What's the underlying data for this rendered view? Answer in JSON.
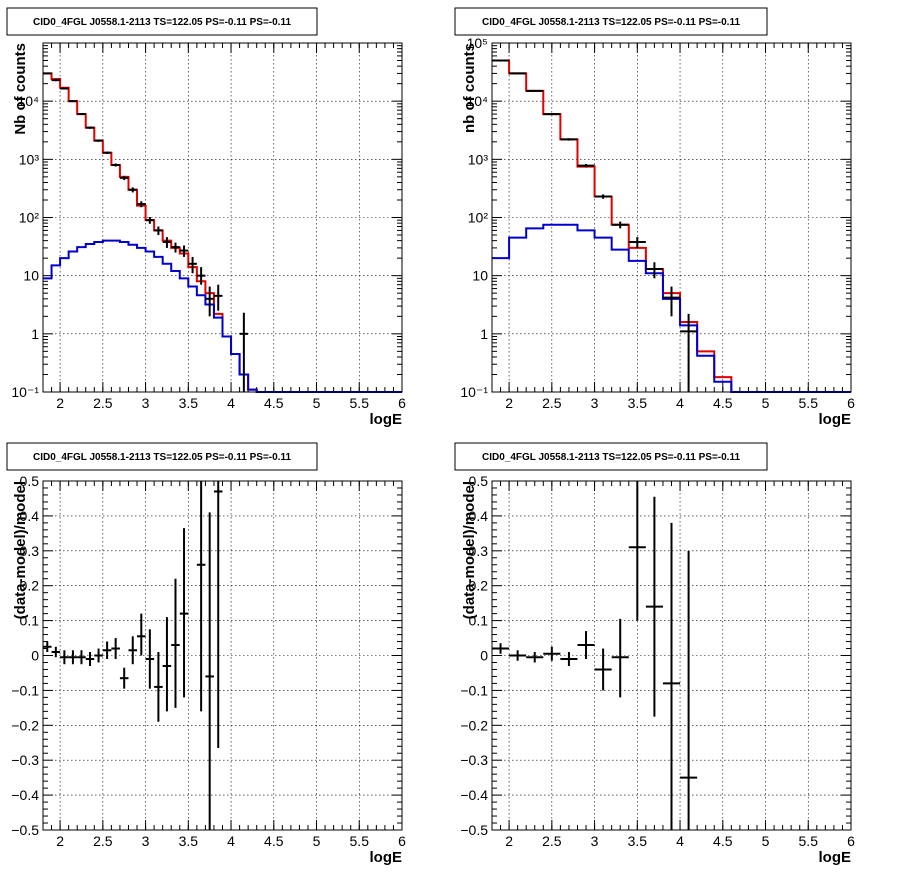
{
  "chart_data": [
    {
      "type": "line",
      "title": "CID0_4FGL J0558.1-2113 TS=122.05 PS=-0.11 PS=-0.11",
      "xlabel": "logE",
      "ylabel": "Nb of counts",
      "xlim": [
        1.8,
        6.0
      ],
      "ylim": [
        0.1,
        100000
      ],
      "yscale": "log",
      "grid": true,
      "xticks": [
        "2",
        "2.5",
        "3",
        "3.5",
        "4",
        "4.5",
        "5",
        "5.5",
        "6"
      ],
      "yticks": [
        "10⁻¹",
        "1",
        "10",
        "10²",
        "10³",
        "10⁴"
      ],
      "bin_edges": [
        1.8,
        1.9,
        2.0,
        2.1,
        2.2,
        2.3,
        2.4,
        2.5,
        2.6,
        2.7,
        2.8,
        2.9,
        3.0,
        3.1,
        3.2,
        3.3,
        3.4,
        3.5,
        3.6,
        3.7,
        3.8,
        3.9,
        4.0,
        4.1,
        4.2,
        4.3,
        4.4,
        4.5,
        4.6,
        4.7,
        4.8,
        4.9,
        5.0,
        5.1,
        5.2,
        5.3,
        5.4,
        5.5,
        5.6,
        5.7,
        5.8,
        5.9,
        6.0
      ],
      "series": [
        {
          "color": "#e00000",
          "values": [
            30000,
            24000,
            17000,
            10000,
            6000,
            3500,
            2100,
            1300,
            800,
            500,
            300,
            160,
            90,
            60,
            40,
            30,
            24,
            14,
            8,
            5,
            2.2,
            0.9,
            0.45,
            0.2,
            0.11,
            0.1,
            0.1,
            0.1,
            0.1,
            0.1,
            0.1,
            0.1,
            0.1,
            0.1,
            0.1,
            0.1,
            0.1,
            0.1,
            0.1,
            0.1,
            0.1,
            0.1
          ]
        },
        {
          "color": "#0000cc",
          "values": [
            9,
            15,
            20,
            26,
            31,
            35,
            38,
            40,
            40,
            38,
            34,
            30,
            26,
            21,
            16,
            12,
            9,
            6.5,
            4.6,
            3.2,
            1.9,
            0.9,
            0.45,
            0.2,
            0.11,
            0.1,
            0.1,
            0.1,
            0.1,
            0.1,
            0.1,
            0.1,
            0.1,
            0.1,
            0.1,
            0.1,
            0.1,
            0.1,
            0.1,
            0.1,
            0.1,
            0.1
          ]
        }
      ],
      "points": [
        {
          "x": 1.85,
          "y": 30000,
          "el": 29000,
          "eh": 31000
        },
        {
          "x": 1.95,
          "y": 23000,
          "el": 22000,
          "eh": 24000
        },
        {
          "x": 2.05,
          "y": 16500,
          "el": 16000,
          "eh": 17000
        },
        {
          "x": 2.15,
          "y": 10000,
          "el": 9700,
          "eh": 10300
        },
        {
          "x": 2.25,
          "y": 6000,
          "el": 5800,
          "eh": 6200
        },
        {
          "x": 2.35,
          "y": 3500,
          "el": 3350,
          "eh": 3650
        },
        {
          "x": 2.45,
          "y": 2100,
          "el": 2000,
          "eh": 2200
        },
        {
          "x": 2.55,
          "y": 1300,
          "el": 1240,
          "eh": 1360
        },
        {
          "x": 2.65,
          "y": 800,
          "el": 750,
          "eh": 850
        },
        {
          "x": 2.75,
          "y": 480,
          "el": 440,
          "eh": 520
        },
        {
          "x": 2.85,
          "y": 300,
          "el": 270,
          "eh": 330
        },
        {
          "x": 2.95,
          "y": 170,
          "el": 150,
          "eh": 190
        },
        {
          "x": 3.05,
          "y": 90,
          "el": 78,
          "eh": 102
        },
        {
          "x": 3.15,
          "y": 60,
          "el": 50,
          "eh": 70
        },
        {
          "x": 3.25,
          "y": 38,
          "el": 30,
          "eh": 46
        },
        {
          "x": 3.35,
          "y": 31,
          "el": 25,
          "eh": 37
        },
        {
          "x": 3.45,
          "y": 27,
          "el": 21,
          "eh": 33
        },
        {
          "x": 3.55,
          "y": 16,
          "el": 11,
          "eh": 21
        },
        {
          "x": 3.65,
          "y": 10,
          "el": 7,
          "eh": 14
        },
        {
          "x": 3.75,
          "y": 4,
          "el": 2,
          "eh": 6.5
        },
        {
          "x": 3.85,
          "y": 4.5,
          "el": 2.5,
          "eh": 7
        },
        {
          "x": 4.15,
          "y": 1,
          "el": 0.1,
          "eh": 2.3
        }
      ]
    },
    {
      "type": "line",
      "title": "CID0_4FGL J0558.1-2113 TS=122.05 PS=-0.11 PS=-0.11",
      "xlabel": "logE",
      "ylabel": "nb of counts",
      "xlim": [
        1.8,
        6.0
      ],
      "ylim": [
        0.1,
        100000
      ],
      "yscale": "log",
      "grid": true,
      "xticks": [
        "2",
        "2.5",
        "3",
        "3.5",
        "4",
        "4.5",
        "5",
        "5.5",
        "6"
      ],
      "yticks": [
        "10⁻¹",
        "1",
        "10",
        "10²",
        "10³",
        "10⁴",
        "10⁵"
      ],
      "bin_edges": [
        1.8,
        2.0,
        2.2,
        2.4,
        2.6,
        2.8,
        3.0,
        3.2,
        3.4,
        3.6,
        3.8,
        4.0,
        4.2,
        4.4,
        4.6,
        4.8,
        5.0,
        5.2,
        5.4,
        5.6,
        5.8,
        6.0
      ],
      "series": [
        {
          "color": "#e00000",
          "values": [
            50000,
            30000,
            15000,
            6000,
            2200,
            750,
            230,
            75,
            30,
            13,
            5,
            1.6,
            0.5,
            0.18,
            0.1,
            0.1,
            0.1,
            0.1,
            0.1,
            0.1,
            0.1
          ]
        },
        {
          "color": "#0000cc",
          "values": [
            20,
            45,
            65,
            75,
            75,
            60,
            45,
            28,
            18,
            11,
            4,
            1.4,
            0.42,
            0.15,
            0.1,
            0.1,
            0.1,
            0.1,
            0.1,
            0.1,
            0.1
          ]
        }
      ],
      "points": [
        {
          "x": 1.9,
          "y": 50000,
          "el": 48000,
          "eh": 52000
        },
        {
          "x": 2.1,
          "y": 30000,
          "el": 29000,
          "eh": 31000
        },
        {
          "x": 2.3,
          "y": 15000,
          "el": 14500,
          "eh": 15500
        },
        {
          "x": 2.5,
          "y": 6000,
          "el": 5800,
          "eh": 6200
        },
        {
          "x": 2.7,
          "y": 2200,
          "el": 2100,
          "eh": 2300
        },
        {
          "x": 2.9,
          "y": 780,
          "el": 730,
          "eh": 830
        },
        {
          "x": 3.1,
          "y": 230,
          "el": 210,
          "eh": 250
        },
        {
          "x": 3.3,
          "y": 75,
          "el": 65,
          "eh": 85
        },
        {
          "x": 3.5,
          "y": 38,
          "el": 30,
          "eh": 46
        },
        {
          "x": 3.7,
          "y": 13,
          "el": 9,
          "eh": 17
        },
        {
          "x": 3.9,
          "y": 4.2,
          "el": 2,
          "eh": 6.5
        },
        {
          "x": 4.1,
          "y": 1.1,
          "el": 0.1,
          "eh": 2.2
        }
      ]
    },
    {
      "type": "scatter",
      "title": "CID0_4FGL J0558.1-2113 TS=122.05 PS=-0.11 PS=-0.11",
      "xlabel": "logE",
      "ylabel": "(data-model)/model",
      "xlim": [
        1.8,
        6.0
      ],
      "ylim": [
        -0.5,
        0.5
      ],
      "grid": true,
      "xticks": [
        "2",
        "2.5",
        "3",
        "3.5",
        "4",
        "4.5",
        "5",
        "5.5",
        "6"
      ],
      "yticks": [
        "−0.5",
        "−0.4",
        "−0.3",
        "−0.2",
        "−0.1",
        "0",
        "0.1",
        "0.2",
        "0.3",
        "0.4",
        "0.5"
      ],
      "xhalf": 0.05,
      "points": [
        {
          "x": 1.85,
          "y": 0.025,
          "el": 0.01,
          "eh": 0.04
        },
        {
          "x": 1.95,
          "y": 0.01,
          "el": -0.005,
          "eh": 0.025
        },
        {
          "x": 2.05,
          "y": -0.005,
          "el": -0.025,
          "eh": 0.015
        },
        {
          "x": 2.15,
          "y": -0.005,
          "el": -0.025,
          "eh": 0.015
        },
        {
          "x": 2.25,
          "y": -0.005,
          "el": -0.025,
          "eh": 0.015
        },
        {
          "x": 2.35,
          "y": -0.01,
          "el": -0.03,
          "eh": 0.01
        },
        {
          "x": 2.45,
          "y": 0.0,
          "el": -0.02,
          "eh": 0.02
        },
        {
          "x": 2.55,
          "y": 0.015,
          "el": -0.01,
          "eh": 0.04
        },
        {
          "x": 2.65,
          "y": 0.02,
          "el": -0.01,
          "eh": 0.05
        },
        {
          "x": 2.75,
          "y": -0.065,
          "el": -0.095,
          "eh": -0.035
        },
        {
          "x": 2.85,
          "y": 0.015,
          "el": -0.025,
          "eh": 0.055
        },
        {
          "x": 2.95,
          "y": 0.055,
          "el": 0.0,
          "eh": 0.12
        },
        {
          "x": 3.05,
          "y": -0.01,
          "el": -0.095,
          "eh": 0.075
        },
        {
          "x": 3.15,
          "y": -0.09,
          "el": -0.19,
          "eh": 0.01
        },
        {
          "x": 3.25,
          "y": -0.03,
          "el": -0.16,
          "eh": 0.11
        },
        {
          "x": 3.35,
          "y": 0.03,
          "el": -0.15,
          "eh": 0.22
        },
        {
          "x": 3.45,
          "y": 0.12,
          "el": -0.12,
          "eh": 0.365
        },
        {
          "x": 3.65,
          "y": 0.26,
          "el": -0.16,
          "eh": 0.5
        },
        {
          "x": 3.75,
          "y": -0.06,
          "el": -0.5,
          "eh": 0.41
        },
        {
          "x": 3.85,
          "y": 0.47,
          "el": -0.265,
          "eh": 0.5
        }
      ]
    },
    {
      "type": "scatter",
      "title": "CID0_4FGL J0558.1-2113 TS=122.05 PS=-0.11 PS=-0.11",
      "xlabel": "logE",
      "ylabel": "(data-model)/model",
      "xlim": [
        1.8,
        6.0
      ],
      "ylim": [
        -0.5,
        0.5
      ],
      "grid": true,
      "xticks": [
        "2",
        "2.5",
        "3",
        "3.5",
        "4",
        "4.5",
        "5",
        "5.5",
        "6"
      ],
      "yticks": [
        "−0.5",
        "−0.4",
        "−0.3",
        "−0.2",
        "−0.1",
        "0",
        "0.1",
        "0.2",
        "0.3",
        "0.4",
        "0.5"
      ],
      "xhalf": 0.1,
      "points": [
        {
          "x": 1.9,
          "y": 0.02,
          "el": 0.005,
          "eh": 0.035
        },
        {
          "x": 2.1,
          "y": 0.0,
          "el": -0.015,
          "eh": 0.015
        },
        {
          "x": 2.3,
          "y": -0.005,
          "el": -0.02,
          "eh": 0.01
        },
        {
          "x": 2.5,
          "y": 0.005,
          "el": -0.015,
          "eh": 0.025
        },
        {
          "x": 2.7,
          "y": -0.01,
          "el": -0.03,
          "eh": 0.01
        },
        {
          "x": 2.9,
          "y": 0.03,
          "el": -0.01,
          "eh": 0.07
        },
        {
          "x": 3.1,
          "y": -0.04,
          "el": -0.1,
          "eh": 0.02
        },
        {
          "x": 3.3,
          "y": -0.005,
          "el": -0.12,
          "eh": 0.105
        },
        {
          "x": 3.5,
          "y": 0.31,
          "el": 0.1,
          "eh": 0.5
        },
        {
          "x": 3.7,
          "y": 0.14,
          "el": -0.175,
          "eh": 0.455
        },
        {
          "x": 3.9,
          "y": -0.08,
          "el": -0.5,
          "eh": 0.38
        },
        {
          "x": 4.1,
          "y": -0.35,
          "el": -0.5,
          "eh": 0.3
        }
      ]
    }
  ]
}
